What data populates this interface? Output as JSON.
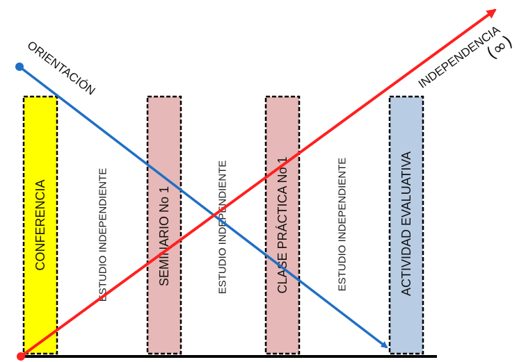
{
  "labels": {
    "orientation": "ORIENTACIÓN",
    "independence": "INDEPENDENCIA",
    "infinity": "(∞)"
  },
  "activities": [
    {
      "label": "CONFERENCIA",
      "fill": "#ffff00"
    },
    {
      "label": "SEMINARIO No 1",
      "fill": "#e6b8b7"
    },
    {
      "label": "CLASE PRÁCTICA No 1",
      "fill": "#e6b8b7"
    },
    {
      "label": "ACTIVIDAD EVALUATIVA",
      "fill": "#b8cce4"
    }
  ],
  "study_label": "ESTUDIO INDEPENDIENTE",
  "colors": {
    "orientation_arrow": "#1f6fc5",
    "independence_arrow": "#ff2020",
    "border": "#000000"
  }
}
